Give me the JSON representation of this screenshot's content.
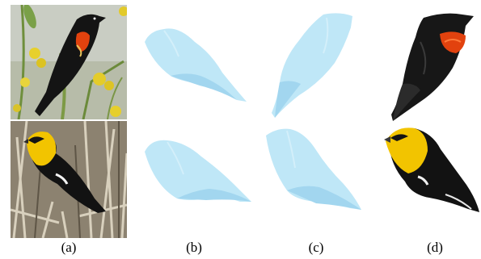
{
  "figure": {
    "captions": [
      "(a)",
      "(b)",
      "(c)",
      "(d)"
    ],
    "colors": {
      "mesh": "#bfe7f7",
      "mesh_shade": "#9fd4ee",
      "redwing_body": "#151515",
      "redwing_patch": "#e0400f",
      "yellowhead_body": "#111111",
      "yellowhead_head": "#f2c400",
      "sky": "#c8ccc0",
      "flowers": "#e6cf2a",
      "reeds": "#b9b09a"
    }
  }
}
